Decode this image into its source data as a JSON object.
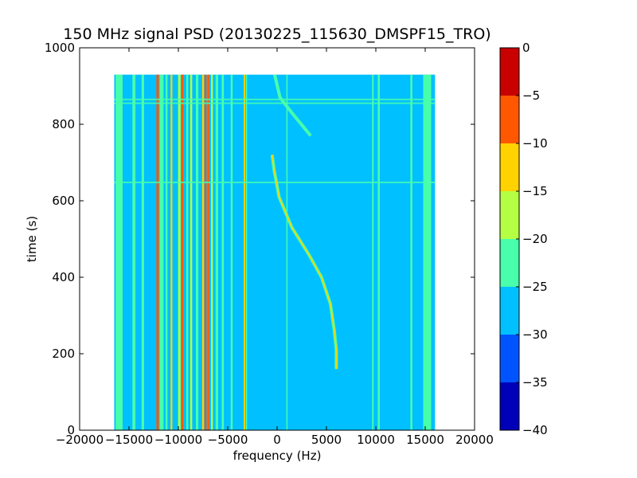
{
  "chart_data": {
    "type": "heatmap",
    "title": "150 MHz signal PSD (20130225_115630_DMSPF15_TRO)",
    "xlabel": "frequency (Hz)",
    "ylabel": "time (s)",
    "xlim": [
      -20000,
      20000
    ],
    "ylim": [
      0,
      1000
    ],
    "x_ticks": [
      -20000,
      -15000,
      -10000,
      -5000,
      0,
      5000,
      10000,
      15000,
      20000
    ],
    "y_ticks": [
      0,
      200,
      400,
      600,
      800,
      1000
    ],
    "data_extent": {
      "x": [
        -16500,
        16000
      ],
      "y": [
        0,
        930
      ]
    },
    "background_level": -28,
    "colorbar": {
      "range": [
        -40,
        0
      ],
      "ticks": [
        0,
        -5,
        -10,
        -15,
        -20,
        -25,
        -30,
        -35,
        -40
      ],
      "levels": [
        {
          "range": [
            -40,
            -35
          ],
          "color": "#0000b8"
        },
        {
          "range": [
            -35,
            -30
          ],
          "color": "#0054ff"
        },
        {
          "range": [
            -30,
            -25
          ],
          "color": "#00c0ff"
        },
        {
          "range": [
            -25,
            -20
          ],
          "color": "#48ffab"
        },
        {
          "range": [
            -20,
            -15
          ],
          "color": "#b4ff43"
        },
        {
          "range": [
            -15,
            -10
          ],
          "color": "#ffd200"
        },
        {
          "range": [
            -10,
            -5
          ],
          "color": "#ff5800"
        },
        {
          "range": [
            -5,
            0
          ],
          "color": "#c80000"
        }
      ]
    },
    "features": [
      {
        "name": "stripe",
        "freq": -16000,
        "level": -22,
        "width": 700
      },
      {
        "name": "stripe",
        "freq": -14500,
        "level": -22,
        "width": 300
      },
      {
        "name": "stripe",
        "freq": -13600,
        "level": -22,
        "width": 250
      },
      {
        "name": "stripe",
        "freq": -12100,
        "level": -8,
        "width": 250
      },
      {
        "name": "stripe",
        "freq": -11700,
        "level": -22,
        "width": 400
      },
      {
        "name": "stripe",
        "freq": -11200,
        "level": -22,
        "width": 200
      },
      {
        "name": "stripe",
        "freq": -10700,
        "level": -12,
        "width": 180
      },
      {
        "name": "stripe",
        "freq": -9900,
        "level": -18,
        "width": 250
      },
      {
        "name": "stripe",
        "freq": -9600,
        "level": -7,
        "width": 200
      },
      {
        "name": "stripe",
        "freq": -9100,
        "level": -22,
        "width": 200
      },
      {
        "name": "stripe",
        "freq": -8700,
        "level": -16,
        "width": 200
      },
      {
        "name": "stripe",
        "freq": -8100,
        "level": -22,
        "width": 250
      },
      {
        "name": "stripe",
        "freq": -7500,
        "level": -14,
        "width": 180
      },
      {
        "name": "stripe",
        "freq": -7250,
        "level": -5,
        "width": 220
      },
      {
        "name": "stripe",
        "freq": -6950,
        "level": -8,
        "width": 150
      },
      {
        "name": "stripe",
        "freq": -6600,
        "level": -17,
        "width": 200
      },
      {
        "name": "stripe",
        "freq": -6100,
        "level": -22,
        "width": 250
      },
      {
        "name": "stripe",
        "freq": -5500,
        "level": -22,
        "width": 220
      },
      {
        "name": "stripe",
        "freq": -4600,
        "level": -22,
        "width": 200
      },
      {
        "name": "stripe",
        "freq": -3300,
        "level": -12,
        "width": 150
      },
      {
        "name": "stripe",
        "freq": -3100,
        "level": -22,
        "width": 120
      },
      {
        "name": "stripe",
        "freq": 1000,
        "level": -22,
        "width": 120
      },
      {
        "name": "stripe",
        "freq": 9700,
        "level": -22,
        "width": 150
      },
      {
        "name": "stripe",
        "freq": 10300,
        "level": -22,
        "width": 200
      },
      {
        "name": "stripe",
        "freq": 13600,
        "level": -22,
        "width": 200
      },
      {
        "name": "stripe",
        "freq": 15200,
        "level": -22,
        "width": 800
      },
      {
        "name": "band",
        "time": 865,
        "level": -23
      },
      {
        "name": "band",
        "time": 855,
        "level": -23
      },
      {
        "name": "band",
        "time": 648,
        "level": -24
      },
      {
        "name": "doppler_trace",
        "level": -14,
        "points": [
          [
            -500,
            720
          ],
          [
            -300,
            680
          ],
          [
            200,
            610
          ],
          [
            1500,
            530
          ],
          [
            3200,
            460
          ],
          [
            4500,
            400
          ],
          [
            5400,
            330
          ],
          [
            5800,
            260
          ],
          [
            6000,
            210
          ],
          [
            6000,
            160
          ]
        ]
      },
      {
        "name": "doppler_trace",
        "level": -22,
        "points": [
          [
            -250,
            930
          ],
          [
            300,
            870
          ],
          [
            1500,
            830
          ],
          [
            3400,
            770
          ]
        ]
      }
    ]
  }
}
